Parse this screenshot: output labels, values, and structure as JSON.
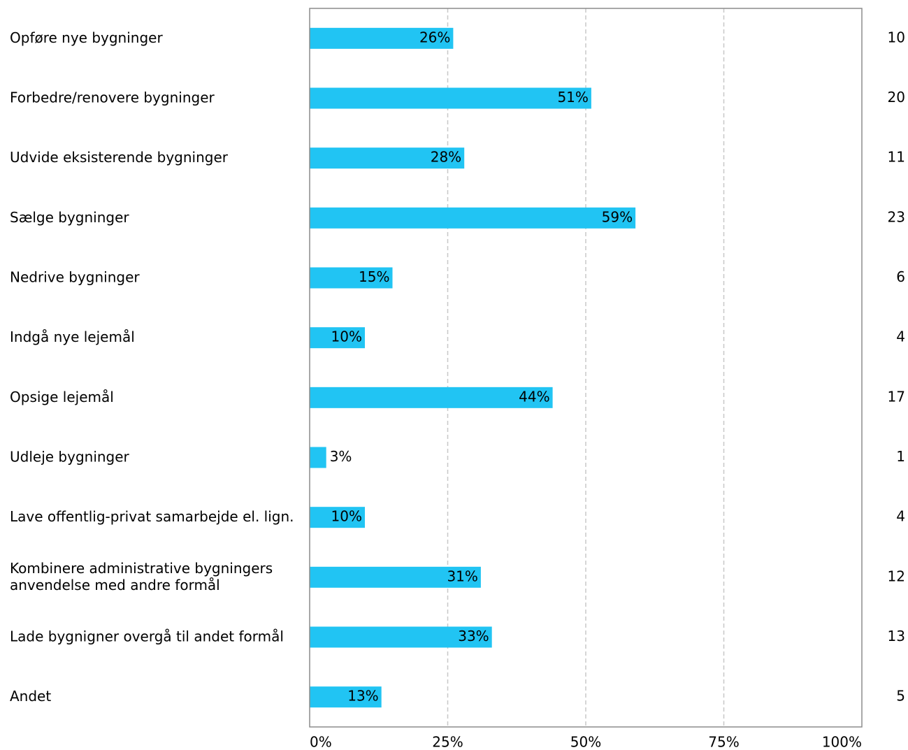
{
  "chart_data": {
    "type": "bar",
    "orientation": "horizontal",
    "categories": [
      [
        "Opføre nye bygninger"
      ],
      [
        "Forbedre/renovere bygninger"
      ],
      [
        "Udvide eksisterende bygninger"
      ],
      [
        "Sælge bygninger"
      ],
      [
        "Nedrive bygninger"
      ],
      [
        "Indgå nye lejemål"
      ],
      [
        "Opsige lejemål"
      ],
      [
        "Udleje bygninger"
      ],
      [
        "Lave offentlig-privat samarbejde el. lign."
      ],
      [
        "Kombinere administrative bygningers",
        "anvendelse med andre formål"
      ],
      [
        "Lade bygnigner overgå til andet formål"
      ],
      [
        "Andet"
      ]
    ],
    "values": [
      26,
      51,
      28,
      59,
      15,
      10,
      44,
      3,
      10,
      31,
      33,
      13
    ],
    "value_labels": [
      "26%",
      "51%",
      "28%",
      "59%",
      "15%",
      "10%",
      "44%",
      "3%",
      "10%",
      "31%",
      "33%",
      "13%"
    ],
    "counts": [
      "10",
      "20",
      "11",
      "23",
      "6",
      "4",
      "17",
      "1",
      "4",
      "12",
      "13",
      "5"
    ],
    "x_ticks": [
      "0%",
      "25%",
      "50%",
      "75%",
      "100%"
    ],
    "xlim": [
      0,
      100
    ],
    "grid": "vertical dashed",
    "bar_color": "#21c4f3"
  }
}
